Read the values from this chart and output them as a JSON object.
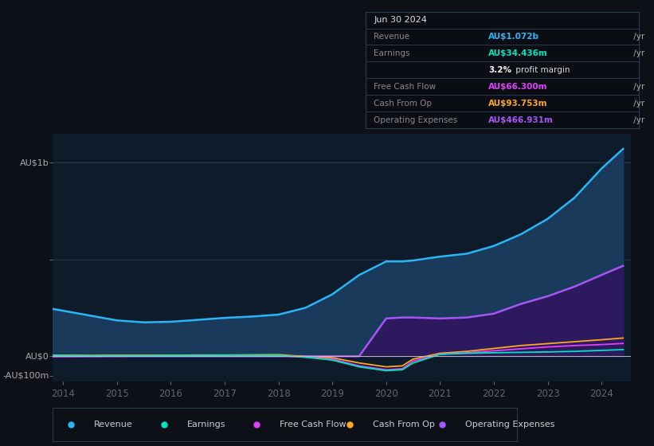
{
  "bg_color": "#0d1117",
  "plot_bg_color": "#0d1b2a",
  "grid_color": "#2a3a4a",
  "years": [
    2013.7,
    2014.0,
    2014.5,
    2015.0,
    2015.5,
    2016.0,
    2016.5,
    2017.0,
    2017.5,
    2018.0,
    2018.5,
    2019.0,
    2019.5,
    2020.0,
    2020.3,
    2020.5,
    2021.0,
    2021.5,
    2022.0,
    2022.5,
    2023.0,
    2023.5,
    2024.0,
    2024.4
  ],
  "revenue": [
    250,
    235,
    210,
    185,
    175,
    178,
    188,
    198,
    205,
    215,
    250,
    320,
    420,
    490,
    490,
    495,
    515,
    530,
    570,
    630,
    710,
    820,
    970,
    1072
  ],
  "earnings": [
    5,
    4,
    3,
    3,
    3,
    4,
    4,
    5,
    5,
    5,
    -5,
    -20,
    -55,
    -75,
    -70,
    -35,
    10,
    15,
    18,
    20,
    22,
    25,
    30,
    34
  ],
  "free_cash_flow": [
    -3,
    -2,
    -1,
    0,
    1,
    1,
    2,
    2,
    2,
    3,
    -5,
    -15,
    -50,
    -70,
    -65,
    -25,
    10,
    18,
    28,
    38,
    48,
    55,
    60,
    66
  ],
  "cash_from_op": [
    5,
    5,
    4,
    5,
    5,
    5,
    6,
    6,
    7,
    8,
    -2,
    -8,
    -35,
    -55,
    -50,
    -15,
    15,
    25,
    40,
    55,
    65,
    75,
    85,
    94
  ],
  "operating_expenses": [
    0,
    0,
    0,
    0,
    0,
    0,
    0,
    0,
    0,
    0,
    0,
    0,
    0,
    195,
    200,
    200,
    195,
    200,
    220,
    270,
    310,
    360,
    420,
    467
  ],
  "revenue_color": "#29b6f6",
  "revenue_fill": "#1a3a5c",
  "earnings_color": "#00e5c0",
  "free_cash_flow_color": "#e040fb",
  "cash_from_op_color": "#ffa726",
  "operating_expenses_color": "#a855f7",
  "operating_expenses_fill": "#2d1a5e",
  "legend_items": [
    {
      "label": "Revenue",
      "color": "#29b6f6"
    },
    {
      "label": "Earnings",
      "color": "#00e5c0"
    },
    {
      "label": "Free Cash Flow",
      "color": "#e040fb"
    },
    {
      "label": "Cash From Op",
      "color": "#ffa726"
    },
    {
      "label": "Operating Expenses",
      "color": "#a855f7"
    }
  ],
  "table_rows": [
    {
      "label": "Jun 30 2024",
      "value": "",
      "value_color": null,
      "is_header": true
    },
    {
      "label": "Revenue",
      "value": "AU$1.072b",
      "value_color": "#29b6f6",
      "is_header": false
    },
    {
      "label": "Earnings",
      "value": "AU$34.436m",
      "value_color": "#00e5c0",
      "is_header": false
    },
    {
      "label": "",
      "value": "3.2% profit margin",
      "value_color": "#ffffff",
      "is_header": false
    },
    {
      "label": "Free Cash Flow",
      "value": "AU$66.300m",
      "value_color": "#e040fb",
      "is_header": false
    },
    {
      "label": "Cash From Op",
      "value": "AU$93.753m",
      "value_color": "#ffa726",
      "is_header": false
    },
    {
      "label": "Operating Expenses",
      "value": "AU$466.931m",
      "value_color": "#a855f7",
      "is_header": false
    }
  ]
}
